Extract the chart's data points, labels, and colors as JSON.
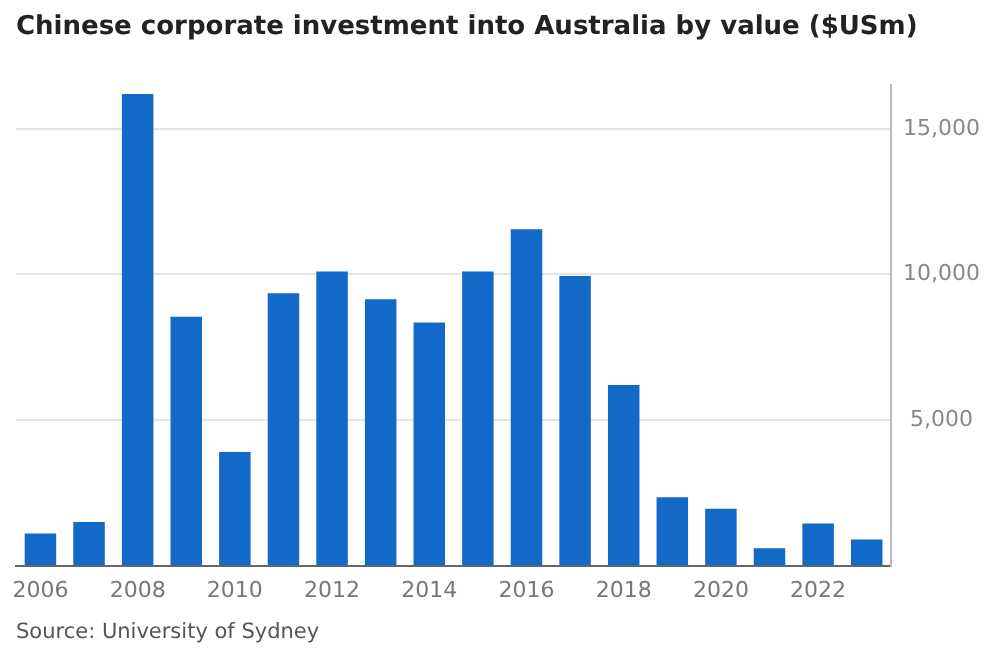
{
  "chart_data": {
    "type": "bar",
    "title": "Chinese corporate investment into Australia by value ($USm)",
    "categories": [
      "2006",
      null,
      "2008",
      null,
      "2010",
      null,
      "2012",
      null,
      "2014",
      null,
      "2016",
      null,
      "2018",
      null,
      "2020",
      null,
      "2022",
      null
    ],
    "values": [
      1100,
      1500,
      16200,
      8550,
      3900,
      9350,
      10100,
      9150,
      8350,
      10100,
      11550,
      9950,
      6200,
      2350,
      1950,
      600,
      1450,
      900
    ],
    "color": "#1269c7",
    "ylim": [
      0,
      16500
    ],
    "yticks": [
      {
        "value": 5000,
        "label": "5,000"
      },
      {
        "value": 10000,
        "label": "10,000"
      },
      {
        "value": 15000,
        "label": "15,000"
      }
    ],
    "grid": "y",
    "annotations": [
      "Source: University of Sydney"
    ]
  }
}
